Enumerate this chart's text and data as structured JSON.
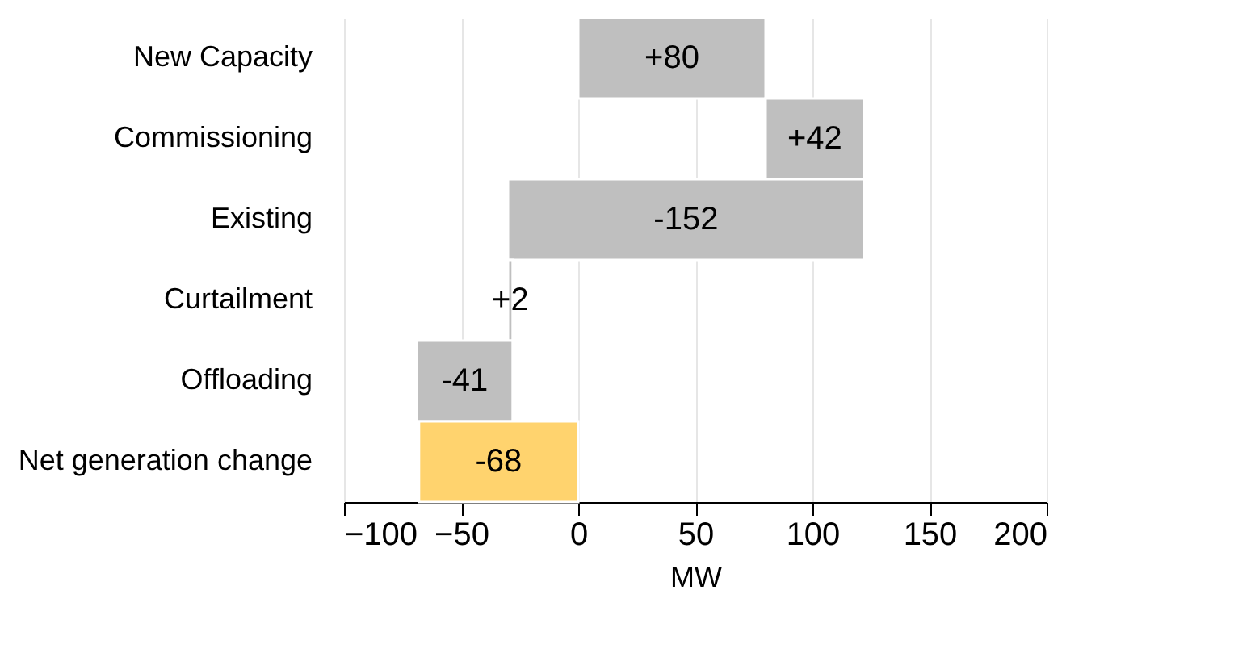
{
  "chart_data": {
    "type": "bar",
    "orientation": "horizontal",
    "xlabel": "MW",
    "categories": [
      "New Capacity",
      "Commissioning",
      "Existing",
      "Curtailment",
      "Offloading",
      "Net generation change"
    ],
    "values": [
      80,
      42,
      -152,
      2,
      -41,
      -68
    ],
    "base": [
      0,
      80,
      122,
      -30,
      -28,
      0
    ],
    "colors": [
      "#bfbfbf",
      "#bfbfbf",
      "#bfbfbf",
      "#bfbfbf",
      "#bfbfbf",
      "#ffd36e"
    ],
    "value_labels": [
      "+80",
      "+42",
      "-152",
      "+2",
      "-41",
      "-68"
    ],
    "xlim": [
      -100,
      200
    ],
    "xticks": [
      -100,
      -50,
      0,
      50,
      100,
      150,
      200
    ],
    "grid": "x"
  }
}
